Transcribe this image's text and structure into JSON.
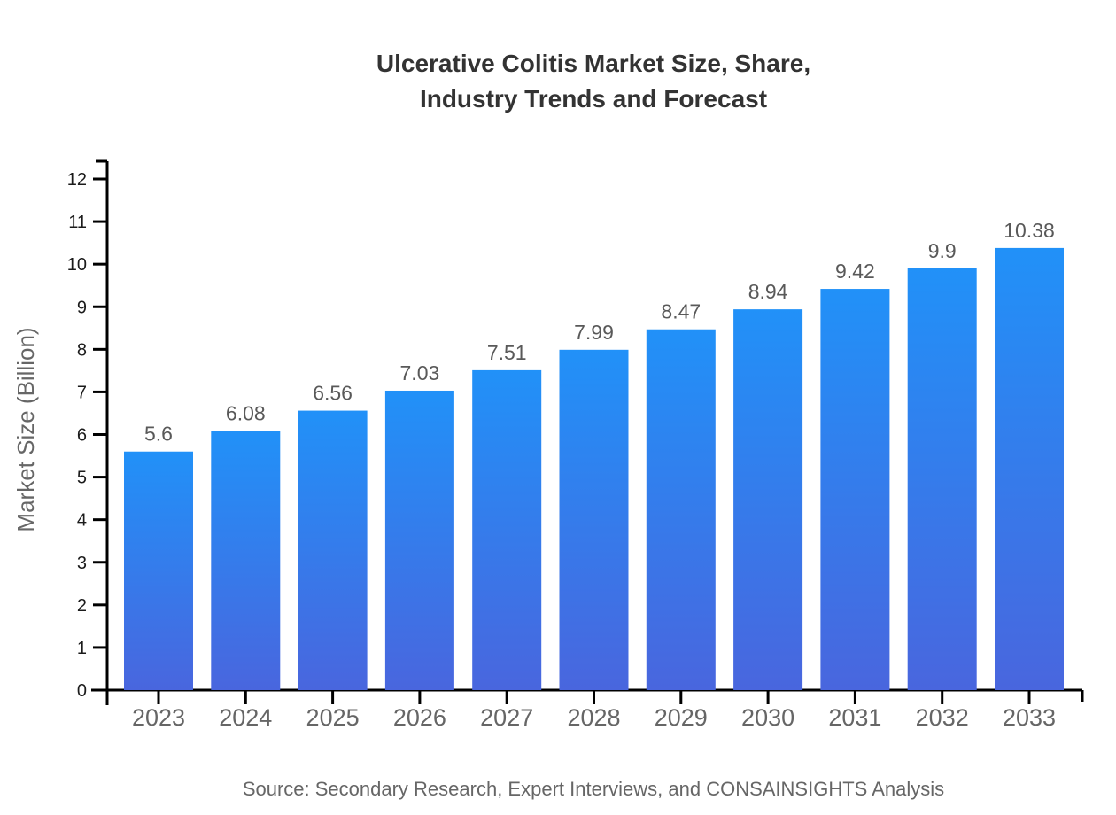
{
  "title": {
    "line1": "Ulcerative Colitis Market Size, Share,",
    "line2": "Industry Trends and Forecast"
  },
  "source": {
    "text": "Source: Secondary Research, Expert Interviews, and CONSAINSIGHTS Analysis"
  },
  "chart_data": {
    "type": "bar",
    "title": "Ulcerative Colitis Market Size, Share, Industry Trends and Forecast",
    "categories": [
      "2023",
      "2024",
      "2025",
      "2026",
      "2027",
      "2028",
      "2029",
      "2030",
      "2031",
      "2032",
      "2033"
    ],
    "values": [
      5.6,
      6.08,
      6.56,
      7.03,
      7.51,
      7.99,
      8.47,
      8.94,
      9.42,
      9.9,
      10.38
    ],
    "value_labels": [
      "5.6",
      "6.08",
      "6.56",
      "7.03",
      "7.51",
      "7.99",
      "8.47",
      "8.94",
      "9.42",
      "9.9",
      "10.38"
    ],
    "xlabel": "",
    "ylabel": "Market Size (Billion)",
    "ylim": [
      0,
      12
    ],
    "ytick_step": 1,
    "yticks": [
      0,
      1,
      2,
      3,
      4,
      5,
      6,
      7,
      8,
      9,
      10,
      11,
      12
    ],
    "grid": false,
    "legend": "none",
    "colors": {
      "bar_gradient_top": "#2191F8",
      "bar_gradient_bottom": "#4966DE",
      "axis_line": "#000000",
      "y_tick_label": "#1b1b1b",
      "x_tick_label": "#666666",
      "value_label": "#595959",
      "axis_title": "#666666",
      "background": "#ffffff"
    }
  }
}
